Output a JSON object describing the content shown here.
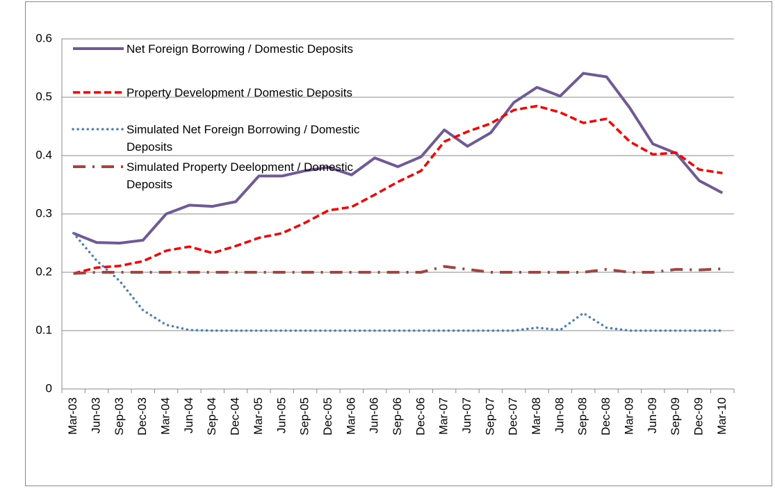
{
  "chart_data": {
    "type": "line",
    "categories": [
      "Mar-03",
      "Jun-03",
      "Sep-03",
      "Dec-03",
      "Mar-04",
      "Jun-04",
      "Sep-04",
      "Dec-04",
      "Mar-05",
      "Jun-05",
      "Sep-05",
      "Dec-05",
      "Mar-06",
      "Jun-06",
      "Sep-06",
      "Dec-06",
      "Mar-07",
      "Jun-07",
      "Sep-07",
      "Dec-07",
      "Mar-08",
      "Jun-08",
      "Sep-08",
      "Dec-08",
      "Mar-09",
      "Jun-09",
      "Sep-09",
      "Dec-09",
      "Mar-10"
    ],
    "series": [
      {
        "name": "Net Foreign Borrowing / Domestic Deposits",
        "color": "#6f5a96",
        "style": "solid",
        "values": [
          0.267,
          0.251,
          0.25,
          0.255,
          0.3,
          0.315,
          0.313,
          0.321,
          0.365,
          0.365,
          0.374,
          0.38,
          0.367,
          0.396,
          0.381,
          0.398,
          0.444,
          0.416,
          0.439,
          0.491,
          0.517,
          0.502,
          0.541,
          0.535,
          0.482,
          0.42,
          0.404,
          0.357,
          0.336
        ]
      },
      {
        "name": "Property Development / Domestic Deposits",
        "color": "#ff0000",
        "style": "dashed",
        "values": [
          0.198,
          0.208,
          0.211,
          0.219,
          0.237,
          0.244,
          0.233,
          0.245,
          0.259,
          0.267,
          0.285,
          0.306,
          0.312,
          0.333,
          0.355,
          0.374,
          0.424,
          0.441,
          0.455,
          0.478,
          0.485,
          0.474,
          0.456,
          0.463,
          0.424,
          0.402,
          0.405,
          0.376,
          0.37
        ]
      },
      {
        "name": "Simulated Net Foreign Borrowing / Domestic Deposits",
        "color": "#4a7ebb",
        "style": "dotted",
        "values": [
          0.267,
          0.22,
          0.185,
          0.135,
          0.11,
          0.101,
          0.1,
          0.1,
          0.1,
          0.1,
          0.1,
          0.1,
          0.1,
          0.1,
          0.1,
          0.1,
          0.1,
          0.1,
          0.1,
          0.1,
          0.105,
          0.101,
          0.13,
          0.105,
          0.1,
          0.1,
          0.1,
          0.1,
          0.1
        ]
      },
      {
        "name": "Simulated Property Deelopment / Domestic Deposits",
        "color": "#a0453f",
        "style": "dashdot",
        "values": [
          0.198,
          0.2,
          0.2,
          0.2,
          0.2,
          0.2,
          0.2,
          0.2,
          0.2,
          0.2,
          0.2,
          0.2,
          0.2,
          0.2,
          0.2,
          0.2,
          0.21,
          0.205,
          0.2,
          0.2,
          0.2,
          0.2,
          0.2,
          0.205,
          0.2,
          0.2,
          0.205,
          0.204,
          0.206
        ]
      }
    ],
    "ylim": [
      0,
      0.6
    ],
    "yticks": [
      0,
      0.1,
      0.2,
      0.3,
      0.4,
      0.5,
      0.6
    ],
    "grid": true,
    "legend": "upper left"
  }
}
